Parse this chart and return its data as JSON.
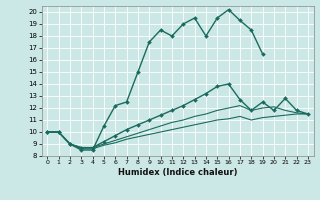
{
  "xlabel": "Humidex (Indice chaleur)",
  "bg_color": "#cce8e6",
  "line_color": "#1a6b5e",
  "grid_color": "#ffffff",
  "xlim": [
    -0.5,
    23.5
  ],
  "ylim": [
    8,
    20.5
  ],
  "xticks": [
    0,
    1,
    2,
    3,
    4,
    5,
    6,
    7,
    8,
    9,
    10,
    11,
    12,
    13,
    14,
    15,
    16,
    17,
    18,
    19,
    20,
    21,
    22,
    23
  ],
  "yticks": [
    8,
    9,
    10,
    11,
    12,
    13,
    14,
    15,
    16,
    17,
    18,
    19,
    20
  ],
  "line1_x": [
    0,
    1,
    2,
    3,
    4,
    5,
    6,
    7,
    8,
    9,
    10,
    11,
    12,
    13,
    14,
    15,
    16,
    17,
    18,
    19
  ],
  "line1_y": [
    10,
    10,
    9,
    8.5,
    8.5,
    10.5,
    12.2,
    12.5,
    15.0,
    17.5,
    18.5,
    18.0,
    19.0,
    19.5,
    18.0,
    19.5,
    20.2,
    19.3,
    18.5,
    16.5
  ],
  "line2_x": [
    0,
    1,
    2,
    3,
    4,
    5,
    6,
    7,
    8,
    9,
    10,
    11,
    12,
    13,
    14,
    15,
    16,
    17,
    18,
    19,
    20,
    21,
    22,
    23
  ],
  "line2_y": [
    10,
    10,
    9.0,
    8.7,
    8.7,
    9.2,
    9.7,
    10.2,
    10.6,
    11.0,
    11.4,
    11.8,
    12.2,
    12.7,
    13.2,
    13.8,
    14.0,
    12.7,
    11.8,
    12.5,
    11.8,
    12.8,
    11.8,
    11.5
  ],
  "line3_x": [
    0,
    1,
    2,
    3,
    4,
    5,
    6,
    7,
    8,
    9,
    10,
    11,
    12,
    13,
    14,
    15,
    16,
    17,
    18,
    19,
    20,
    21,
    22,
    23
  ],
  "line3_y": [
    10,
    10,
    9.0,
    8.7,
    8.7,
    9.0,
    9.3,
    9.6,
    9.9,
    10.2,
    10.5,
    10.8,
    11.0,
    11.3,
    11.5,
    11.8,
    12.0,
    12.2,
    11.8,
    12.0,
    12.1,
    11.8,
    11.6,
    11.5
  ],
  "line4_x": [
    0,
    1,
    2,
    3,
    4,
    5,
    6,
    7,
    8,
    9,
    10,
    11,
    12,
    13,
    14,
    15,
    16,
    17,
    18,
    19,
    20,
    21,
    22,
    23
  ],
  "line4_y": [
    10,
    10,
    9.0,
    8.6,
    8.6,
    8.9,
    9.1,
    9.4,
    9.6,
    9.8,
    10.0,
    10.2,
    10.4,
    10.6,
    10.8,
    11.0,
    11.1,
    11.3,
    11.0,
    11.2,
    11.3,
    11.4,
    11.5,
    11.5
  ]
}
